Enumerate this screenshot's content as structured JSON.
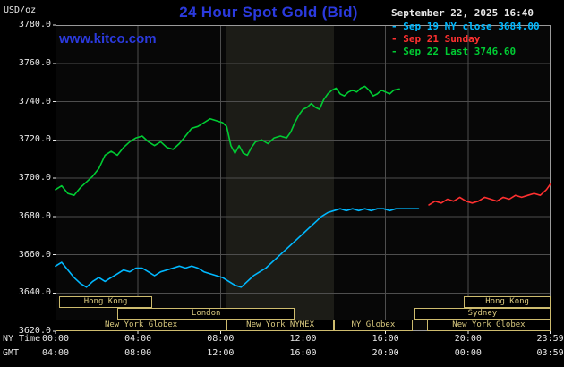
{
  "header": {
    "unit_label": "USD/oz",
    "title": "24 Hour Spot Gold (Bid)",
    "timestamp": "September 22, 2025 16:40",
    "watermark": "www.kitco.com"
  },
  "legend": [
    {
      "marker": "-",
      "label": "Sep 19 NY close 3684.00",
      "color": "#00b8ff"
    },
    {
      "marker": "-",
      "label": "Sep 21 Sunday",
      "color": "#ff3030"
    },
    {
      "marker": "-",
      "label": "Sep 22 Last 3746.60",
      "color": "#00cc33"
    }
  ],
  "axes": {
    "ny_label": "NY Time",
    "gmt_label": "GMT",
    "grid_hours": [
      4,
      8,
      12,
      16,
      20
    ],
    "y_ticks": [
      {
        "value": 3780,
        "label": "3780.0"
      },
      {
        "value": 3760,
        "label": "3760.0"
      },
      {
        "value": 3740,
        "label": "3740.0"
      },
      {
        "value": 3720,
        "label": "3720.0"
      },
      {
        "value": 3700,
        "label": "3700.0"
      },
      {
        "value": 3680,
        "label": "3680.0"
      },
      {
        "value": 3660,
        "label": "3660.0"
      },
      {
        "value": 3640,
        "label": "3640.0"
      },
      {
        "value": 3620,
        "label": "3620.0"
      }
    ],
    "x_ticks": [
      {
        "hour": 0,
        "ny": "00:00",
        "gmt": "04:00"
      },
      {
        "hour": 4,
        "ny": "04:00",
        "gmt": "08:00"
      },
      {
        "hour": 8,
        "ny": "08:00",
        "gmt": "12:00"
      },
      {
        "hour": 12,
        "ny": "12:00",
        "gmt": "16:00"
      },
      {
        "hour": 16,
        "ny": "16:00",
        "gmt": "20:00"
      },
      {
        "hour": 20,
        "ny": "20:00",
        "gmt": "00:00"
      },
      {
        "hour": 23.983,
        "ny": "23:59",
        "gmt": "03:59"
      }
    ]
  },
  "colors": {
    "background": "#000000",
    "plot_bg": "#070707",
    "band": "rgba(215,215,170,0.10)",
    "grid": "#4e4e4e",
    "border": "#9a9a9a",
    "text": "#e8e8e8",
    "accent_blue": "#2b3ade",
    "session": "#cdbb6e"
  },
  "chart_data": {
    "type": "line",
    "title": "24 Hour Spot Gold (Bid)",
    "ylabel": "USD/oz",
    "xlabel": "NY Time / GMT",
    "ylim": [
      3620,
      3780
    ],
    "xlim_hours": [
      0,
      24
    ],
    "grid": true,
    "legend_position": "top-right",
    "highlight_band_hours": [
      8.3,
      13.5
    ],
    "series": [
      {
        "id": "sep19",
        "name": "Sep 19 NY close",
        "color": "#00b8ff",
        "close": 3684.0,
        "points": [
          [
            0,
            3654
          ],
          [
            0.3,
            3656
          ],
          [
            0.6,
            3652
          ],
          [
            0.9,
            3648
          ],
          [
            1.2,
            3645
          ],
          [
            1.5,
            3643
          ],
          [
            1.8,
            3646
          ],
          [
            2.1,
            3648
          ],
          [
            2.4,
            3646
          ],
          [
            2.7,
            3648
          ],
          [
            3.0,
            3650
          ],
          [
            3.3,
            3652
          ],
          [
            3.6,
            3651
          ],
          [
            3.9,
            3653
          ],
          [
            4.2,
            3653
          ],
          [
            4.5,
            3651
          ],
          [
            4.8,
            3649
          ],
          [
            5.1,
            3651
          ],
          [
            5.4,
            3652
          ],
          [
            5.7,
            3653
          ],
          [
            6.0,
            3654
          ],
          [
            6.3,
            3653
          ],
          [
            6.6,
            3654
          ],
          [
            6.9,
            3653
          ],
          [
            7.2,
            3651
          ],
          [
            7.5,
            3650
          ],
          [
            7.8,
            3649
          ],
          [
            8.1,
            3648
          ],
          [
            8.4,
            3646
          ],
          [
            8.7,
            3644
          ],
          [
            9.0,
            3643
          ],
          [
            9.3,
            3646
          ],
          [
            9.6,
            3649
          ],
          [
            9.9,
            3651
          ],
          [
            10.2,
            3653
          ],
          [
            10.5,
            3656
          ],
          [
            10.8,
            3659
          ],
          [
            11.1,
            3662
          ],
          [
            11.4,
            3665
          ],
          [
            11.7,
            3668
          ],
          [
            12.0,
            3671
          ],
          [
            12.3,
            3674
          ],
          [
            12.6,
            3677
          ],
          [
            12.9,
            3680
          ],
          [
            13.2,
            3682
          ],
          [
            13.5,
            3683
          ],
          [
            13.8,
            3684
          ],
          [
            14.1,
            3683
          ],
          [
            14.4,
            3684
          ],
          [
            14.7,
            3683
          ],
          [
            15.0,
            3684
          ],
          [
            15.3,
            3683
          ],
          [
            15.6,
            3684
          ],
          [
            15.9,
            3684
          ],
          [
            16.2,
            3683
          ],
          [
            16.5,
            3684
          ],
          [
            16.8,
            3684
          ],
          [
            17.2,
            3684
          ],
          [
            17.6,
            3684
          ]
        ]
      },
      {
        "id": "sep21",
        "name": "Sep 21 Sunday",
        "color": "#ff3030",
        "points": [
          [
            18.1,
            3686
          ],
          [
            18.4,
            3688
          ],
          [
            18.7,
            3687
          ],
          [
            19.0,
            3689
          ],
          [
            19.3,
            3688
          ],
          [
            19.6,
            3690
          ],
          [
            19.9,
            3688
          ],
          [
            20.2,
            3687
          ],
          [
            20.5,
            3688
          ],
          [
            20.8,
            3690
          ],
          [
            21.1,
            3689
          ],
          [
            21.4,
            3688
          ],
          [
            21.7,
            3690
          ],
          [
            22.0,
            3689
          ],
          [
            22.3,
            3691
          ],
          [
            22.6,
            3690
          ],
          [
            22.9,
            3691
          ],
          [
            23.2,
            3692
          ],
          [
            23.5,
            3691
          ],
          [
            23.8,
            3694
          ],
          [
            24,
            3697
          ]
        ]
      },
      {
        "id": "sep22",
        "name": "Sep 22 Last",
        "color": "#00cc33",
        "last": 3746.6,
        "points": [
          [
            0,
            3694
          ],
          [
            0.3,
            3696
          ],
          [
            0.6,
            3692
          ],
          [
            0.9,
            3691
          ],
          [
            1.2,
            3695
          ],
          [
            1.5,
            3698
          ],
          [
            1.8,
            3701
          ],
          [
            2.1,
            3705
          ],
          [
            2.4,
            3712
          ],
          [
            2.7,
            3714
          ],
          [
            3.0,
            3712
          ],
          [
            3.3,
            3716
          ],
          [
            3.6,
            3719
          ],
          [
            3.9,
            3721
          ],
          [
            4.2,
            3722
          ],
          [
            4.5,
            3719
          ],
          [
            4.8,
            3717
          ],
          [
            5.1,
            3719
          ],
          [
            5.4,
            3716
          ],
          [
            5.7,
            3715
          ],
          [
            6.0,
            3718
          ],
          [
            6.3,
            3722
          ],
          [
            6.6,
            3726
          ],
          [
            6.9,
            3727
          ],
          [
            7.2,
            3729
          ],
          [
            7.5,
            3731
          ],
          [
            7.8,
            3730
          ],
          [
            8.1,
            3729
          ],
          [
            8.3,
            3727
          ],
          [
            8.5,
            3717
          ],
          [
            8.7,
            3713
          ],
          [
            8.9,
            3717
          ],
          [
            9.1,
            3713
          ],
          [
            9.3,
            3712
          ],
          [
            9.5,
            3716
          ],
          [
            9.7,
            3719
          ],
          [
            10.0,
            3720
          ],
          [
            10.3,
            3718
          ],
          [
            10.6,
            3721
          ],
          [
            10.9,
            3722
          ],
          [
            11.2,
            3721
          ],
          [
            11.4,
            3724
          ],
          [
            11.6,
            3729
          ],
          [
            11.8,
            3733
          ],
          [
            12.0,
            3736
          ],
          [
            12.2,
            3737
          ],
          [
            12.4,
            3739
          ],
          [
            12.6,
            3737
          ],
          [
            12.8,
            3736
          ],
          [
            13.0,
            3741
          ],
          [
            13.2,
            3744
          ],
          [
            13.4,
            3746
          ],
          [
            13.6,
            3747
          ],
          [
            13.8,
            3744
          ],
          [
            14.0,
            3743
          ],
          [
            14.2,
            3745
          ],
          [
            14.4,
            3746
          ],
          [
            14.6,
            3745
          ],
          [
            14.8,
            3747
          ],
          [
            15.0,
            3748
          ],
          [
            15.2,
            3746
          ],
          [
            15.4,
            3743
          ],
          [
            15.6,
            3744
          ],
          [
            15.8,
            3746
          ],
          [
            16.0,
            3745
          ],
          [
            16.2,
            3744
          ],
          [
            16.4,
            3746
          ],
          [
            16.67,
            3746.6
          ]
        ]
      }
    ],
    "sessions": [
      {
        "row": 0,
        "label": "Hong Kong",
        "start": 0.17,
        "end": 4.7
      },
      {
        "row": 0,
        "label": "Hong Kong",
        "start": 19.8,
        "end": 24
      },
      {
        "row": 1,
        "label": "London",
        "start": 3.0,
        "end": 11.6
      },
      {
        "row": 1,
        "label": "Sydney",
        "start": 17.4,
        "end": 24
      },
      {
        "row": 2,
        "label": "New York Globex",
        "start": 0,
        "end": 8.3
      },
      {
        "row": 2,
        "label": "New York NYMEX",
        "start": 8.3,
        "end": 13.5
      },
      {
        "row": 2,
        "label": "NY Globex",
        "start": 13.5,
        "end": 17.3
      },
      {
        "row": 2,
        "label": "New York Globex",
        "start": 18.0,
        "end": 24
      }
    ]
  }
}
